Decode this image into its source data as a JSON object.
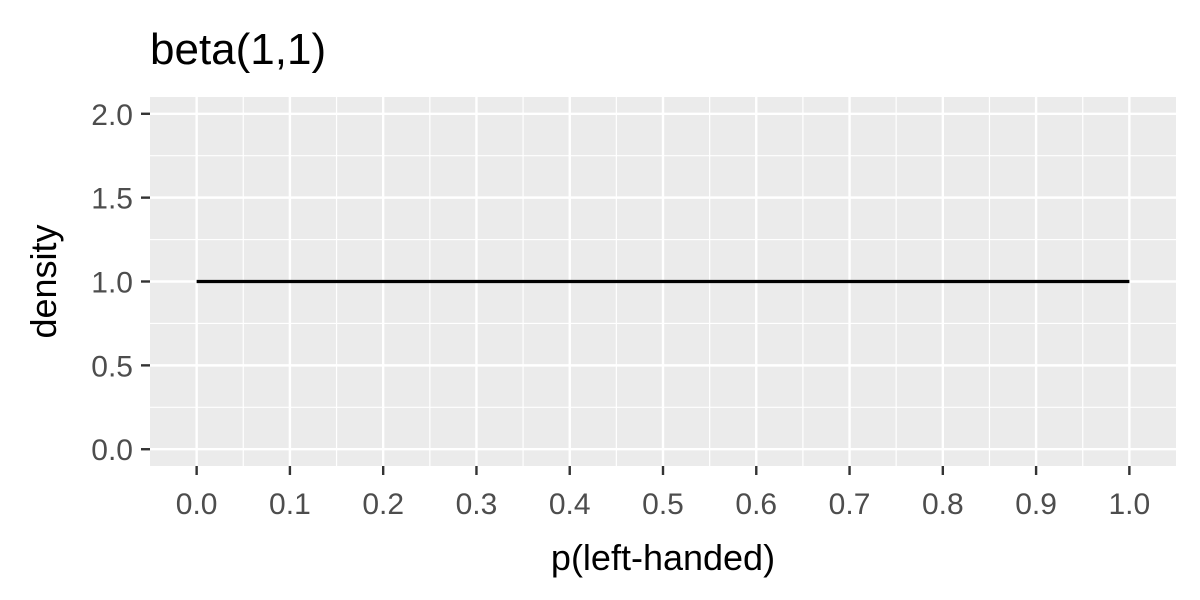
{
  "chart_data": {
    "type": "line",
    "title": "beta(1,1)",
    "xlabel": "p(left-handed)",
    "ylabel": "density",
    "xlim": [
      -0.05,
      1.05
    ],
    "ylim": [
      -0.1,
      2.1
    ],
    "x_ticks": [
      "0.0",
      "0.1",
      "0.2",
      "0.3",
      "0.4",
      "0.5",
      "0.6",
      "0.7",
      "0.8",
      "0.9",
      "1.0"
    ],
    "y_ticks": [
      "0.0",
      "0.5",
      "1.0",
      "1.5",
      "2.0"
    ],
    "grid": true,
    "series": [
      {
        "x": [
          0.0,
          1.0
        ],
        "y": [
          1.0,
          1.0
        ]
      }
    ],
    "colors": {
      "panel": "#ebebeb",
      "grid": "#ffffff",
      "line": "#000000",
      "tick_text": "#4d4d4d",
      "tick_mark": "#333333"
    }
  }
}
